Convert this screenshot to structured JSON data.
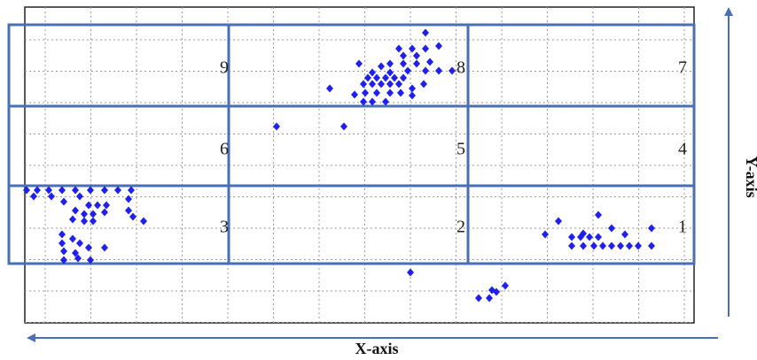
{
  "cells": [
    {
      "label": "9"
    },
    {
      "label": "8"
    },
    {
      "label": "7"
    },
    {
      "label": "6"
    },
    {
      "label": "5"
    },
    {
      "label": "4"
    },
    {
      "label": "3"
    },
    {
      "label": "2"
    },
    {
      "label": "1"
    }
  ],
  "x_axis": {
    "label": "X-axis"
  },
  "y_axis": {
    "label": "Y-axis"
  }
}
